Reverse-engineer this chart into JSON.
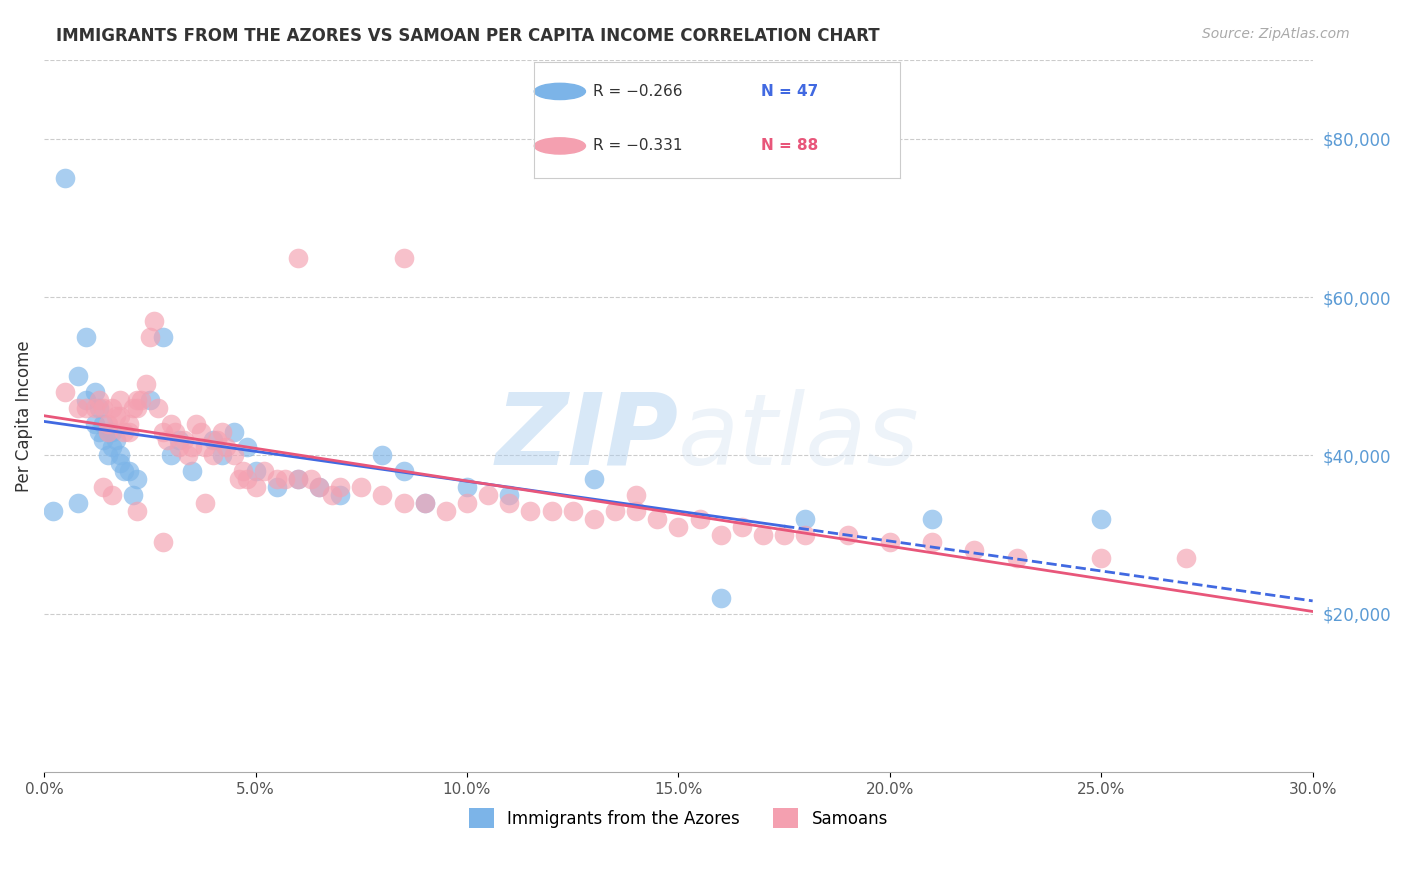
{
  "title": "IMMIGRANTS FROM THE AZORES VS SAMOAN PER CAPITA INCOME CORRELATION CHART",
  "source": "Source: ZipAtlas.com",
  "ylabel": "Per Capita Income",
  "y_ticks": [
    20000,
    40000,
    60000,
    80000
  ],
  "y_tick_labels": [
    "$20,000",
    "$40,000",
    "$60,000",
    "$80,000"
  ],
  "x_min": 0.0,
  "x_max": 0.3,
  "y_min": 0,
  "y_max": 90000,
  "legend_blue_r": "R = −0.266",
  "legend_blue_n": "N = 47",
  "legend_pink_r": "R = −0.331",
  "legend_pink_n": "N = 88",
  "legend_label_blue": "Immigrants from the Azores",
  "legend_label_pink": "Samoans",
  "blue_color": "#7cb4e8",
  "pink_color": "#f4a0b0",
  "trendline_blue_color": "#4169E1",
  "trendline_pink_color": "#e8567a",
  "watermark_zip": "ZIP",
  "watermark_atlas": "atlas",
  "blue_x": [
    0.002,
    0.005,
    0.008,
    0.008,
    0.01,
    0.01,
    0.012,
    0.012,
    0.013,
    0.013,
    0.014,
    0.014,
    0.015,
    0.015,
    0.016,
    0.016,
    0.017,
    0.018,
    0.018,
    0.019,
    0.02,
    0.021,
    0.022,
    0.025,
    0.028,
    0.03,
    0.032,
    0.035,
    0.04,
    0.042,
    0.045,
    0.048,
    0.05,
    0.055,
    0.06,
    0.065,
    0.07,
    0.08,
    0.085,
    0.09,
    0.1,
    0.11,
    0.13,
    0.16,
    0.18,
    0.21,
    0.25
  ],
  "blue_y": [
    33000,
    75000,
    50000,
    34000,
    55000,
    47000,
    48000,
    44000,
    46000,
    43000,
    44000,
    42000,
    43000,
    40000,
    43000,
    41000,
    42000,
    40000,
    39000,
    38000,
    38000,
    35000,
    37000,
    47000,
    55000,
    40000,
    42000,
    38000,
    42000,
    40000,
    43000,
    41000,
    38000,
    36000,
    37000,
    36000,
    35000,
    40000,
    38000,
    34000,
    36000,
    35000,
    37000,
    22000,
    32000,
    32000,
    32000
  ],
  "pink_x": [
    0.005,
    0.008,
    0.01,
    0.012,
    0.013,
    0.014,
    0.015,
    0.015,
    0.016,
    0.017,
    0.018,
    0.018,
    0.019,
    0.02,
    0.02,
    0.021,
    0.022,
    0.022,
    0.023,
    0.024,
    0.025,
    0.026,
    0.027,
    0.028,
    0.029,
    0.03,
    0.031,
    0.032,
    0.033,
    0.034,
    0.035,
    0.036,
    0.037,
    0.038,
    0.04,
    0.041,
    0.042,
    0.043,
    0.045,
    0.046,
    0.047,
    0.048,
    0.05,
    0.052,
    0.055,
    0.057,
    0.06,
    0.063,
    0.065,
    0.068,
    0.07,
    0.075,
    0.08,
    0.085,
    0.09,
    0.095,
    0.1,
    0.105,
    0.11,
    0.115,
    0.12,
    0.125,
    0.13,
    0.135,
    0.14,
    0.145,
    0.15,
    0.155,
    0.16,
    0.165,
    0.17,
    0.175,
    0.18,
    0.19,
    0.2,
    0.21,
    0.22,
    0.23,
    0.25,
    0.27,
    0.014,
    0.016,
    0.022,
    0.028,
    0.038,
    0.06,
    0.085,
    0.14
  ],
  "pink_y": [
    48000,
    46000,
    46000,
    46000,
    47000,
    46000,
    44000,
    43000,
    46000,
    45000,
    47000,
    45000,
    43000,
    44000,
    43000,
    46000,
    46000,
    47000,
    47000,
    49000,
    55000,
    57000,
    46000,
    43000,
    42000,
    44000,
    43000,
    41000,
    42000,
    40000,
    41000,
    44000,
    43000,
    41000,
    40000,
    42000,
    43000,
    41000,
    40000,
    37000,
    38000,
    37000,
    36000,
    38000,
    37000,
    37000,
    37000,
    37000,
    36000,
    35000,
    36000,
    36000,
    35000,
    34000,
    34000,
    33000,
    34000,
    35000,
    34000,
    33000,
    33000,
    33000,
    32000,
    33000,
    33000,
    32000,
    31000,
    32000,
    30000,
    31000,
    30000,
    30000,
    30000,
    30000,
    29000,
    29000,
    28000,
    27000,
    27000,
    27000,
    36000,
    35000,
    33000,
    29000,
    34000,
    65000,
    65000,
    35000
  ]
}
